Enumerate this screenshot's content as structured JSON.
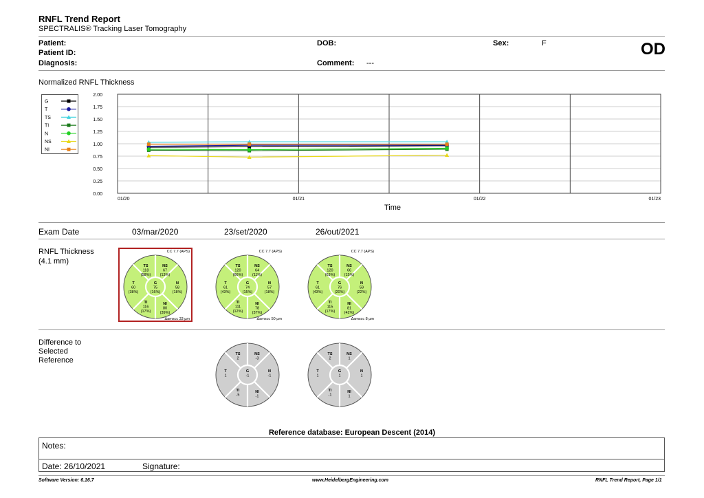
{
  "header": {
    "title": "RNFL Trend Report",
    "subtitle": "SPECTRALIS® Tracking Laser Tomography",
    "patient_label": "Patient:",
    "patient_id_label": "Patient ID:",
    "diagnosis_label": "Diagnosis:",
    "dob_label": "DOB:",
    "comment_label": "Comment:",
    "comment_value": "---",
    "sex_label": "Sex:",
    "sex_value": "F",
    "eye": "OD"
  },
  "chart_data": {
    "type": "line",
    "title": "Normalized RNFL Thickness",
    "xlabel": "Time",
    "ylabel": "",
    "ylim": [
      0,
      2
    ],
    "yticks": [
      "0.00",
      "0.25",
      "0.50",
      "0.75",
      "1.00",
      "1.25",
      "1.50",
      "1.75",
      "2.00"
    ],
    "xticks": [
      "01/20",
      "01/21",
      "01/22",
      "01/23"
    ],
    "x": [
      "03/mar/2020",
      "23/set/2020",
      "26/out/2021"
    ],
    "series": [
      {
        "name": "G",
        "color": "#000000",
        "marker": "square",
        "values": [
          0.93,
          0.94,
          0.96
        ]
      },
      {
        "name": "T",
        "color": "#1a1aa0",
        "marker": "circle",
        "values": [
          0.95,
          0.97,
          0.97
        ]
      },
      {
        "name": "TS",
        "color": "#44d4e0",
        "marker": "triangle",
        "values": [
          1.03,
          1.04,
          1.04
        ]
      },
      {
        "name": "TI",
        "color": "#1a7a1a",
        "marker": "square",
        "values": [
          0.87,
          0.86,
          0.89
        ]
      },
      {
        "name": "N",
        "color": "#22d022",
        "marker": "circle",
        "values": [
          0.89,
          0.88,
          0.91
        ]
      },
      {
        "name": "NS",
        "color": "#e8d81a",
        "marker": "triangle",
        "values": [
          0.76,
          0.73,
          0.77
        ]
      },
      {
        "name": "NI",
        "color": "#e8801a",
        "marker": "square",
        "values": [
          0.99,
          0.99,
          0.99
        ]
      }
    ]
  },
  "exams": {
    "header_label": "Exam Date",
    "dates": [
      "03/mar/2020",
      "23/set/2020",
      "26/out/2021"
    ]
  },
  "rnfl_section": {
    "label": "RNFL Thickness",
    "sublabel": "(4.1 mm)",
    "circles": [
      {
        "cc": "CC 7.7 (APS)",
        "ts": "118",
        "ts_p": "(58%)",
        "ns": "67",
        "ns_p": "(13%)",
        "t": "60",
        "t_p": "(38%)",
        "g": "75",
        "g_p": "(16%)",
        "n": "58",
        "n_p": "(18%)",
        "ti": "116",
        "ti_p": "(17%)",
        "ni": "80",
        "ni_p": "(39%)",
        "amscc": "Δamscc 33 µm",
        "selected": true
      },
      {
        "cc": "CC 7.7 (APS)",
        "ts": "120",
        "ts_p": "(66%)",
        "ns": "64",
        "ns_p": "(11%)",
        "t": "61",
        "t_p": "(43%)",
        "g": "74",
        "g_p": "(15%)",
        "n": "57",
        "n_p": "(18%)",
        "ti": "111",
        "ti_p": "(12%)",
        "ni": "78",
        "ni_p": "(37%)",
        "amscc": "Δamscc 50 µm",
        "selected": false
      },
      {
        "cc": "CC 7.7 (APS)",
        "ts": "120",
        "ts_p": "(63%)",
        "ns": "66",
        "ns_p": "(15%)",
        "t": "61",
        "t_p": "(43%)",
        "g": "76",
        "g_p": "(20%)",
        "n": "59",
        "n_p": "(22%)",
        "ti": "115",
        "ti_p": "(17%)",
        "ni": "81",
        "ni_p": "(42%)",
        "amscc": "Δamscc 8 µm",
        "selected": false
      }
    ]
  },
  "diff_section": {
    "label_line1": "Difference to",
    "label_line2": "Selected",
    "label_line3": "Reference",
    "circles": [
      {
        "ts": "2",
        "ns": "-3",
        "t": "1",
        "g": "-1",
        "n": "-1",
        "ti": "-5",
        "ni": "-1"
      },
      {
        "ts": "2",
        "ns": "1",
        "t": "1",
        "g": "1",
        "n": "1",
        "ti": "-1",
        "ni": "1"
      }
    ]
  },
  "reference_db": "Reference database: European Descent (2014)",
  "notes": {
    "notes_label": "Notes:",
    "date_label": "Date: 26/10/2021",
    "signature_label": "Signature:"
  },
  "footer": {
    "software": "Software Version: 6.16.7",
    "website": "www.HeidelbergEngineering.com",
    "page": "RNFL Trend Report, Page 1/1"
  },
  "colors": {
    "normal_green": "#c4f07a",
    "diff_gray": "#cfcfcf",
    "selected_border": "#b22222"
  }
}
